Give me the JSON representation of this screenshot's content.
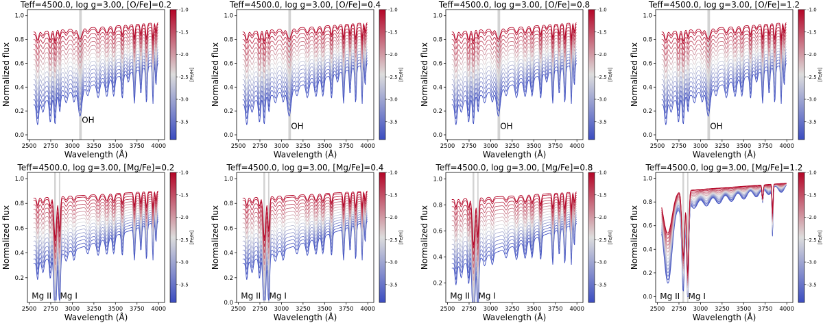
{
  "figure": {
    "colorbar_label": "[Fe/H]",
    "colorbar_ticks": [
      -1.0,
      -1.5,
      -2.0,
      -2.5,
      -3.0,
      -3.5
    ],
    "colorbar_range": [
      -3.9,
      -1.0
    ],
    "colors": {
      "low": "#3b4cc0",
      "mid": "#dddddd",
      "high": "#b40426",
      "band": "#d3d3d3"
    },
    "feh_values": [
      -3.9,
      -3.7,
      -3.5,
      -3.3,
      -3.1,
      -2.9,
      -2.7,
      -2.5,
      -2.3,
      -2.1,
      -1.9,
      -1.7,
      -1.5,
      -1.3,
      -1.1,
      -1.0
    ]
  },
  "chart_data": [
    {
      "type": "line",
      "title": "Teff=4500.0, log g=3.00, [O/Fe]=0.2",
      "xlabel": "Wavelength (Å)",
      "ylabel": "Normalized flux",
      "xlim": [
        2480,
        4070
      ],
      "ylim": [
        -0.04,
        1.05
      ],
      "xticks": [
        2500,
        2750,
        3000,
        3250,
        3500,
        3750,
        4000
      ],
      "yticks": [
        0.0,
        0.2,
        0.4,
        0.6,
        0.8,
        1.0
      ],
      "bands": [
        [
          3080,
          3110
        ]
      ],
      "annotations": [
        {
          "text": "OH",
          "x": 3110,
          "y": 0.1
        }
      ],
      "profile": "O"
    },
    {
      "type": "line",
      "title": "Teff=4500.0, log g=3.00, [O/Fe]=0.4",
      "xlabel": "Wavelength (Å)",
      "ylabel": "Normalized flux",
      "xlim": [
        2480,
        4070
      ],
      "ylim": [
        -0.04,
        1.05
      ],
      "xticks": [
        2500,
        2750,
        3000,
        3250,
        3500,
        3750,
        4000
      ],
      "yticks": [
        0.0,
        0.2,
        0.4,
        0.6,
        0.8,
        1.0
      ],
      "bands": [
        [
          3080,
          3110
        ]
      ],
      "annotations": [
        {
          "text": "OH",
          "x": 3110,
          "y": 0.05
        }
      ],
      "profile": "O"
    },
    {
      "type": "line",
      "title": "Teff=4500.0, log g=3.00, [O/Fe]=0.8",
      "xlabel": "Wavelength (Å)",
      "ylabel": "Normalized flux",
      "xlim": [
        2480,
        4070
      ],
      "ylim": [
        -0.04,
        1.05
      ],
      "xticks": [
        2500,
        2750,
        3000,
        3250,
        3500,
        3750,
        4000
      ],
      "yticks": [
        0.0,
        0.2,
        0.4,
        0.6,
        0.8,
        1.0
      ],
      "bands": [
        [
          3080,
          3110
        ]
      ],
      "annotations": [
        {
          "text": "OH",
          "x": 3110,
          "y": 0.05
        }
      ],
      "profile": "O"
    },
    {
      "type": "line",
      "title": "Teff=4500.0, log g=3.00, [O/Fe]=1.2",
      "xlabel": "Wavelength (Å)",
      "ylabel": "Normalized flux",
      "xlim": [
        2480,
        4070
      ],
      "ylim": [
        -0.04,
        1.05
      ],
      "xticks": [
        2500,
        2750,
        3000,
        3250,
        3500,
        3750,
        4000
      ],
      "yticks": [
        0.0,
        0.2,
        0.4,
        0.6,
        0.8,
        1.0
      ],
      "bands": [
        [
          3080,
          3110
        ]
      ],
      "annotations": [
        {
          "text": "OH",
          "x": 3110,
          "y": 0.05
        }
      ],
      "profile": "O"
    },
    {
      "type": "line",
      "title": "Teff=4500.0, log g=3.00, [Mg/Fe]=0.2",
      "xlabel": "Wavelength (Å)",
      "ylabel": "Normalized flux",
      "xlim": [
        2480,
        4070
      ],
      "ylim": [
        0.0,
        1.05
      ],
      "xticks": [
        2500,
        2750,
        3000,
        3250,
        3500,
        3750,
        4000
      ],
      "yticks": [
        0.2,
        0.4,
        0.6,
        0.8,
        1.0
      ],
      "bands": [
        [
          2790,
          2810
        ],
        [
          2845,
          2860
        ]
      ],
      "annotations": [
        {
          "text": "Mg II",
          "x": 2530,
          "y": 0.03
        },
        {
          "text": "Mg I",
          "x": 2858,
          "y": 0.03
        }
      ],
      "profile": "Mg1"
    },
    {
      "type": "line",
      "title": "Teff=4500.0, log g=3.00, [Mg/Fe]=0.4",
      "xlabel": "Wavelength (Å)",
      "ylabel": "Normalized flux",
      "xlim": [
        2480,
        4070
      ],
      "ylim": [
        0.0,
        1.05
      ],
      "xticks": [
        2500,
        2750,
        3000,
        3250,
        3500,
        3750,
        4000
      ],
      "yticks": [
        0.0,
        0.2,
        0.4,
        0.6,
        0.8,
        1.0
      ],
      "bands": [
        [
          2790,
          2810
        ],
        [
          2845,
          2860
        ]
      ],
      "annotations": [
        {
          "text": "Mg II",
          "x": 2530,
          "y": 0.03
        },
        {
          "text": "Mg I",
          "x": 2858,
          "y": 0.03
        }
      ],
      "profile": "Mg1"
    },
    {
      "type": "line",
      "title": "Teff=4500.0, log g=3.00, [Mg/Fe]=0.8",
      "xlabel": "Wavelength (Å)",
      "ylabel": "Normalized flux",
      "xlim": [
        2480,
        4070
      ],
      "ylim": [
        0.05,
        1.05
      ],
      "xticks": [
        2500,
        2750,
        3000,
        3250,
        3500,
        3750,
        4000
      ],
      "yticks": [
        0.2,
        0.4,
        0.6,
        0.8,
        1.0
      ],
      "bands": [
        [
          2790,
          2810
        ],
        [
          2845,
          2860
        ]
      ],
      "annotations": [
        {
          "text": "Mg II",
          "x": 2530,
          "y": 0.08
        },
        {
          "text": "Mg I",
          "x": 2858,
          "y": 0.08
        }
      ],
      "profile": "Mg2"
    },
    {
      "type": "line",
      "title": "Teff=4500.0, log g=3.00, [Mg/Fe]=1.2",
      "xlabel": "Wavelength (Å)",
      "ylabel": "Normalized flux",
      "xlim": [
        2480,
        4070
      ],
      "ylim": [
        -0.05,
        1.05
      ],
      "xticks": [
        2500,
        2750,
        3000,
        3250,
        3500,
        3750,
        4000
      ],
      "yticks": [
        0.0,
        0.2,
        0.4,
        0.6,
        0.8,
        1.0
      ],
      "bands": [
        [
          2790,
          2810
        ],
        [
          2845,
          2860
        ]
      ],
      "annotations": [
        {
          "text": "Mg II",
          "x": 2530,
          "y": -0.02
        },
        {
          "text": "Mg I",
          "x": 2858,
          "y": -0.02
        }
      ],
      "profile": "Mg3"
    }
  ]
}
